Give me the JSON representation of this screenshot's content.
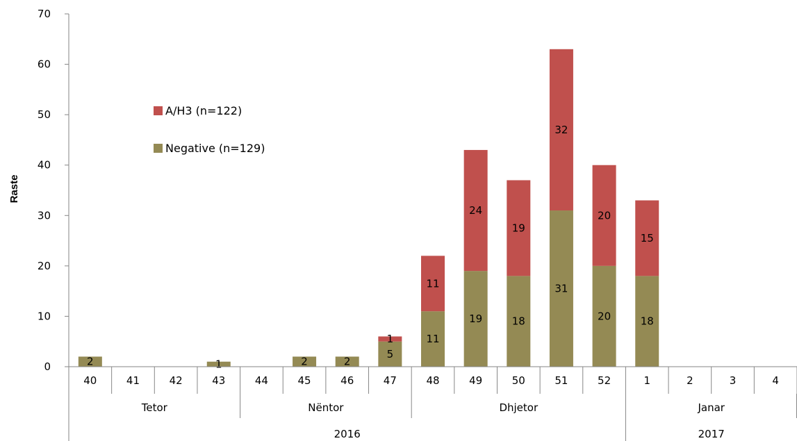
{
  "chart_data": {
    "type": "bar",
    "stacked": true,
    "ylabel": "Raste",
    "ylim": [
      0,
      70
    ],
    "yticks": [
      0,
      10,
      20,
      30,
      40,
      50,
      60,
      70
    ],
    "grid": false,
    "legend_position": "upper-left",
    "categories": [
      "40",
      "41",
      "42",
      "43",
      "44",
      "45",
      "46",
      "47",
      "48",
      "49",
      "50",
      "51",
      "52",
      "1",
      "2",
      "3",
      "4"
    ],
    "months": [
      {
        "label": "Tetor",
        "span": 4
      },
      {
        "label": "Nëntor",
        "span": 4
      },
      {
        "label": "Dhjetor",
        "span": 5
      },
      {
        "label": "Janar",
        "span": 4
      }
    ],
    "years": [
      {
        "label": "2016",
        "span": 13
      },
      {
        "label": "2017",
        "span": 4
      }
    ],
    "series": [
      {
        "name": "Negative (n=129)",
        "color": "#948A54",
        "values": [
          2,
          0,
          0,
          1,
          0,
          2,
          2,
          5,
          11,
          19,
          18,
          31,
          20,
          18,
          0,
          0,
          0
        ],
        "labels": [
          "2",
          "",
          "",
          "1",
          "",
          "2",
          "2",
          "5",
          "11",
          "19",
          "18",
          "31",
          "20",
          "18",
          "",
          "",
          ""
        ]
      },
      {
        "name": "A/H3 (n=122)",
        "color": "#C0504D",
        "values": [
          0,
          0,
          0,
          0,
          0,
          0,
          0,
          1,
          11,
          24,
          19,
          32,
          20,
          15,
          0,
          0,
          0
        ],
        "labels": [
          "",
          "",
          "",
          "",
          "",
          "",
          "",
          "1",
          "11",
          "24",
          "19",
          "32",
          "20",
          "15",
          "",
          "",
          ""
        ]
      }
    ]
  }
}
